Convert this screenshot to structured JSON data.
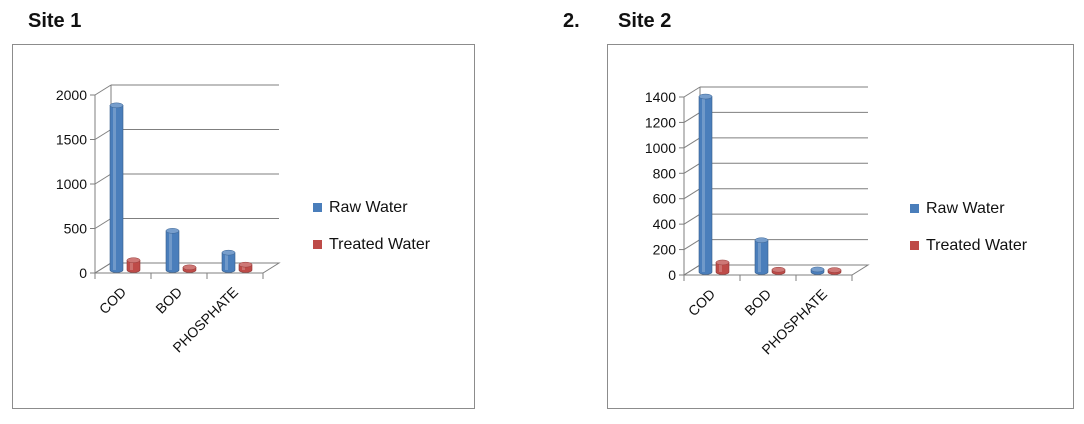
{
  "headings": {
    "site1": "Site 1",
    "number": "2.",
    "site2": "Site 2"
  },
  "colors": {
    "raw": "#4a7ebb",
    "treated": "#be4b48",
    "grid": "#7f7f7f"
  },
  "chart_data": [
    {
      "type": "bar",
      "title": "",
      "xlabel": "",
      "ylabel": "",
      "categories": [
        "COD",
        "BOD",
        "PHOSPHATE"
      ],
      "ylim": [
        0,
        2000
      ],
      "ystep": 500,
      "grid": true,
      "legend": "right",
      "series": [
        {
          "name": "Raw Water",
          "values": [
            1850,
            440,
            195
          ]
        },
        {
          "name": "Treated Water",
          "values": [
            110,
            30,
            60
          ]
        }
      ]
    },
    {
      "type": "bar",
      "title": "",
      "xlabel": "",
      "ylabel": "",
      "categories": [
        "COD",
        "BOD",
        "PHOSPHATE"
      ],
      "ylim": [
        0,
        1400
      ],
      "ystep": 200,
      "grid": true,
      "legend": "right",
      "series": [
        {
          "name": "Raw Water",
          "values": [
            1380,
            250,
            20
          ]
        },
        {
          "name": "Treated Water",
          "values": [
            75,
            18,
            15
          ]
        }
      ]
    }
  ]
}
